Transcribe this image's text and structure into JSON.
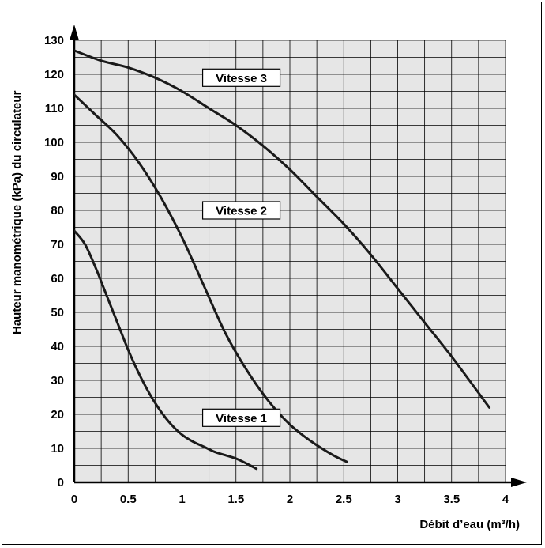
{
  "chart_data": {
    "type": "line",
    "title": "",
    "xlabel": "Débit d’eau (m³/h)",
    "ylabel": "Hauteur manométrique (kPa)   du circulateur",
    "xlim": [
      0,
      4
    ],
    "ylim": [
      0,
      130
    ],
    "x_ticks": [
      "0",
      "0.5",
      "1",
      "1.5",
      "2",
      "2.5",
      "3",
      "3.5",
      "4"
    ],
    "y_ticks": [
      "0",
      "10",
      "20",
      "30",
      "40",
      "50",
      "60",
      "70",
      "80",
      "90",
      "100",
      "110",
      "120",
      "130"
    ],
    "grid": true,
    "colors": {
      "line": "#1a1a1a",
      "grid": "#000000",
      "background": "#e6e6e6"
    },
    "series": [
      {
        "name": "Vitesse 1",
        "x": [
          0,
          0.1,
          0.2,
          0.3,
          0.4,
          0.5,
          0.6,
          0.7,
          0.8,
          0.9,
          1.0,
          1.1,
          1.2,
          1.3,
          1.4,
          1.5,
          1.6,
          1.69
        ],
        "y": [
          74,
          70,
          63,
          55,
          47,
          39,
          32,
          26,
          21,
          17,
          14,
          12,
          10.5,
          9,
          8,
          7,
          5.5,
          4
        ]
      },
      {
        "name": "Vitesse 2",
        "x": [
          0,
          0.2,
          0.4,
          0.6,
          0.8,
          1.0,
          1.2,
          1.4,
          1.6,
          1.8,
          2.0,
          2.2,
          2.4,
          2.53
        ],
        "y": [
          114,
          108,
          102,
          94,
          84,
          72,
          58,
          44,
          33,
          24,
          17,
          12,
          8,
          6
        ]
      },
      {
        "name": "Vitesse 3",
        "x": [
          0,
          0.25,
          0.5,
          0.75,
          1.0,
          1.25,
          1.5,
          1.75,
          2.0,
          2.25,
          2.5,
          2.75,
          3.0,
          3.25,
          3.5,
          3.85
        ],
        "y": [
          127,
          124,
          122,
          119,
          115,
          110,
          105,
          99,
          92,
          84,
          76,
          67,
          57,
          47,
          37,
          22
        ]
      }
    ],
    "labels": [
      {
        "text": "Vitesse 3",
        "x": 1.55,
        "y": 119
      },
      {
        "text": "Vitesse 2",
        "x": 1.55,
        "y": 80
      },
      {
        "text": "Vitesse 1",
        "x": 1.55,
        "y": 19
      }
    ]
  }
}
